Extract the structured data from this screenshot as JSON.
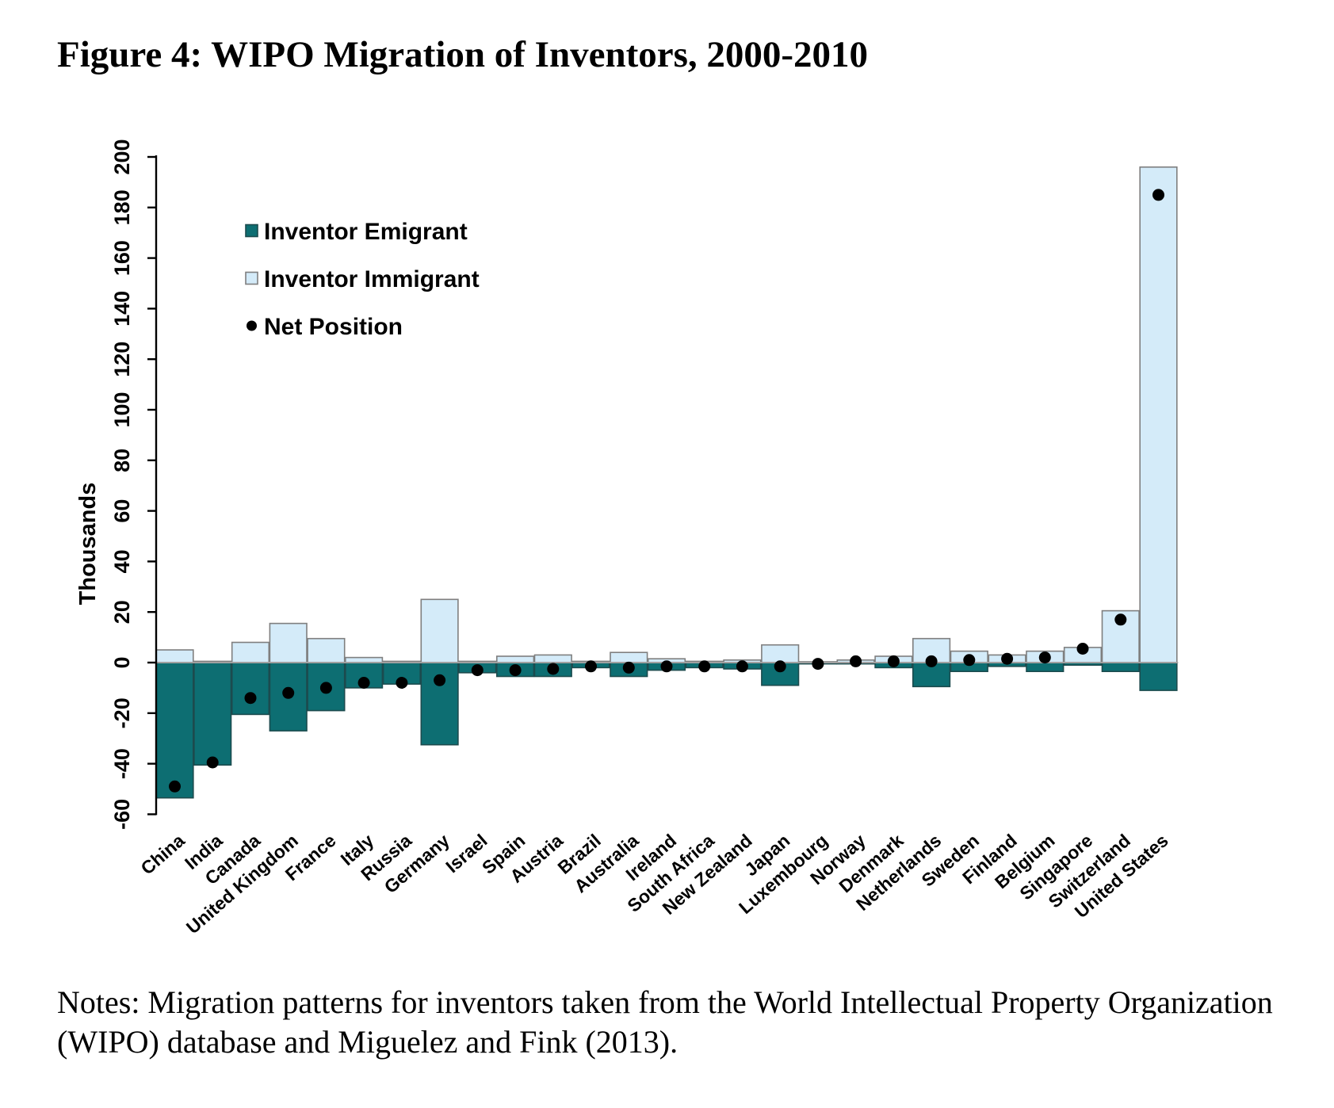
{
  "title": "Figure 4: WIPO Migration of Inventors, 2000-2010",
  "notes": "Notes: Migration patterns for inventors taken from the World Intellectual Property Organization (WIPO) database and Miguelez and Fink (2013).",
  "colors": {
    "emigrant_fill": "#0d6e72",
    "emigrant_stroke": "#1c4b4e",
    "immigrant_fill": "#d4ebf9",
    "immigrant_stroke": "#7f7f7f",
    "net_dot": "#000000",
    "axis": "#000000",
    "zero_line": "#a0a0a0",
    "text": "#000000"
  },
  "chart_data": {
    "type": "bar",
    "title": "",
    "xlabel": "",
    "ylabel": "Thousands",
    "ylim": [
      -60,
      200
    ],
    "ytick_step": 20,
    "yticks": [
      200,
      180,
      160,
      140,
      120,
      100,
      80,
      60,
      40,
      20,
      0,
      -20,
      -40,
      -60
    ],
    "grid": false,
    "legend_position": "upper-left-inside",
    "legend": [
      {
        "label": "Inventor Emigrant",
        "marker": "square",
        "fill": "#0d6e72"
      },
      {
        "label": "Inventor Immigrant",
        "marker": "square",
        "fill": "#d4ebf9"
      },
      {
        "label": "Net Position",
        "marker": "dot",
        "fill": "#000000"
      }
    ],
    "categories": [
      "China",
      "India",
      "Canada",
      "United Kingdom",
      "France",
      "Italy",
      "Russia",
      "Germany",
      "Israel",
      "Spain",
      "Austria",
      "Brazil",
      "Australia",
      "Ireland",
      "South Africa",
      "New Zealand",
      "Japan",
      "Luxembourg",
      "Norway",
      "Denmark",
      "Netherlands",
      "Sweden",
      "Finland",
      "Belgium",
      "Singapore",
      "Switzerland",
      "United States"
    ],
    "series": [
      {
        "name": "Inventor Emigrant",
        "values": [
          -53.5,
          -40.5,
          -20.5,
          -27,
          -19,
          -10,
          -8.5,
          -32.5,
          -4,
          -5.5,
          -5.5,
          -2,
          -5.5,
          -3,
          -2,
          -2.5,
          -9,
          -0.5,
          -0.5,
          -2,
          -9.5,
          -3.5,
          -1.5,
          -3.5,
          -1,
          -3.5,
          -11
        ]
      },
      {
        "name": "Inventor Immigrant",
        "values": [
          5,
          0.5,
          8,
          15.5,
          9.5,
          2,
          0.5,
          25,
          0.5,
          2.5,
          3,
          0.5,
          4,
          1.5,
          0.5,
          1,
          7,
          0.3,
          1,
          2.5,
          9.5,
          4.5,
          3,
          4.5,
          6,
          20.5,
          196
        ]
      },
      {
        "name": "Net Position",
        "values": [
          -49,
          -39.5,
          -14,
          -12,
          -10,
          -8,
          -8,
          -7,
          -3,
          -3,
          -2.5,
          -1.5,
          -2,
          -1.5,
          -1.5,
          -1.5,
          -1.5,
          -0.5,
          0.5,
          0.5,
          0.5,
          1,
          1.5,
          2,
          5.5,
          17,
          185
        ]
      }
    ]
  }
}
